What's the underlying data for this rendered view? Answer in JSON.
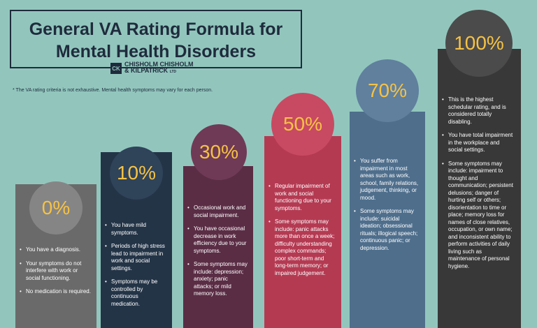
{
  "header": {
    "title_lines": [
      "General VA Rating Formula for",
      "Mental Health Disorders"
    ],
    "logo_mark": "CK",
    "logo_lines": [
      "CHISHOLM CHISHOLM",
      "& KILPATRICK"
    ],
    "logo_suffix": "LTD"
  },
  "note": "* The VA rating criteria is not exhaustive.  Mental health symptoms may vary for each person.",
  "columns": [
    {
      "rating": "0%",
      "bullets": [
        "You have a diagnosis.",
        "Your symptoms do not interfere with work or social functioning.",
        "No medication is required."
      ]
    },
    {
      "rating": "10%",
      "bullets": [
        "You have mild symptoms.",
        "Periods of high stress lead to impairment in work and social settings.",
        "Symptoms may be controlled by continuous medication."
      ]
    },
    {
      "rating": "30%",
      "bullets": [
        "Occasional work and social impairment.",
        "You have occasional decrease in work efficiency due to your symptoms.",
        "Some symptoms may include: depression; anxiety; panic attacks; or mild memory loss."
      ]
    },
    {
      "rating": "50%",
      "bullets": [
        "Regular impairment of work and social functioning due to your symptoms.",
        "Some symptoms may include: panic attacks more than once a week; difficulty understanding complex commands; poor short-term and long-term memory; or impaired judgement."
      ]
    },
    {
      "rating": "70%",
      "bullets": [
        "You suffer from impairment in most areas such as work, school, family relations, judgement, thinking, or mood.",
        "Some symptoms may include: suicidal ideation; obsessional rituals; illogical speech; continuous panic; or depression."
      ]
    },
    {
      "rating": "100%",
      "bullets": [
        "This is the highest schedular rating, and is considered totally disabling.",
        "You have total impairment in the workplace and social settings.",
        "Some symptoms may include: impairment to thought and communication; persistent delusions; danger of hurting self or others; disorientation to time or place; memory loss for names of close relatives, occupation, or own name; and inconsistent ability to perform activities of daily living such as maintenance of personal hygiene."
      ]
    }
  ]
}
